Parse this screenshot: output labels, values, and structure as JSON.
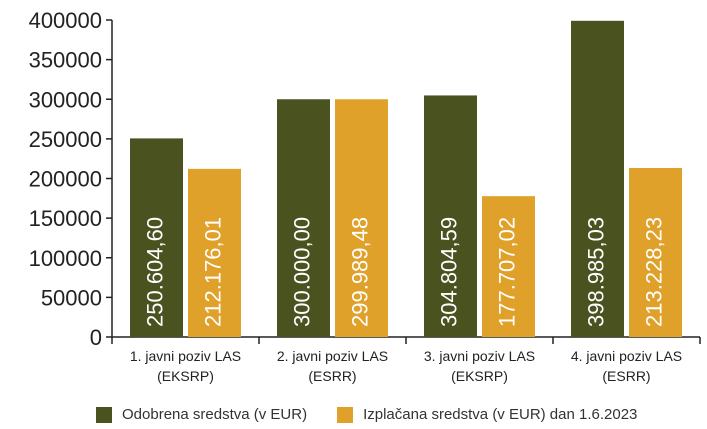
{
  "chart_data": {
    "type": "bar",
    "title": "",
    "xlabel": "",
    "ylabel": "",
    "ylim": [
      0,
      400000
    ],
    "yticks": [
      "0",
      "50000",
      "100000",
      "150000",
      "200000",
      "250000",
      "300000",
      "350000",
      "400000"
    ],
    "grid": false,
    "legend_position": "bottom",
    "categories": [
      [
        "1. javni poziv LAS",
        "(EKSRP)"
      ],
      [
        "2. javni poziv LAS",
        "(ESRR)"
      ],
      [
        "3. javni poziv LAS",
        "(EKSRP)"
      ],
      [
        "4. javni poziv LAS",
        "(ESRR)"
      ]
    ],
    "series": [
      {
        "name": "Odobrena sredstva (v EUR)",
        "color": "#4a5220",
        "values": [
          250604.6,
          300000.0,
          304804.59,
          398985.03
        ],
        "labels": [
          "250.604,60",
          "300.000,00",
          "304.804,59",
          "398.985,03"
        ]
      },
      {
        "name": "Izplačana sredstva (v EUR) dan 1.6.2023",
        "color": "#e0a12a",
        "values": [
          212176.01,
          299989.48,
          177707.02,
          213228.23
        ],
        "labels": [
          "212.176,01",
          "299.989,48",
          "177.707,02",
          "213.228,23"
        ]
      }
    ]
  }
}
